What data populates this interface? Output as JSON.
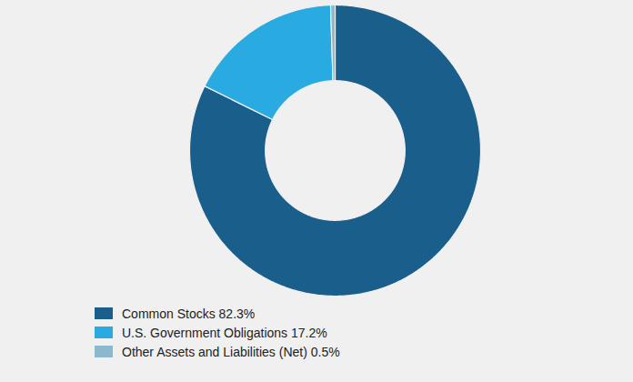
{
  "chart_data": {
    "type": "donut",
    "categories": [
      "Common Stocks 82.3%",
      "U.S. Government Obligations 17.2%",
      "Other Assets and Liabilities (Net) 0.5%"
    ],
    "values": [
      82.3,
      17.2,
      0.5
    ],
    "colors": [
      "#1a5f8c",
      "#29abe2",
      "#8ab8cc"
    ],
    "legend": "lower left"
  }
}
